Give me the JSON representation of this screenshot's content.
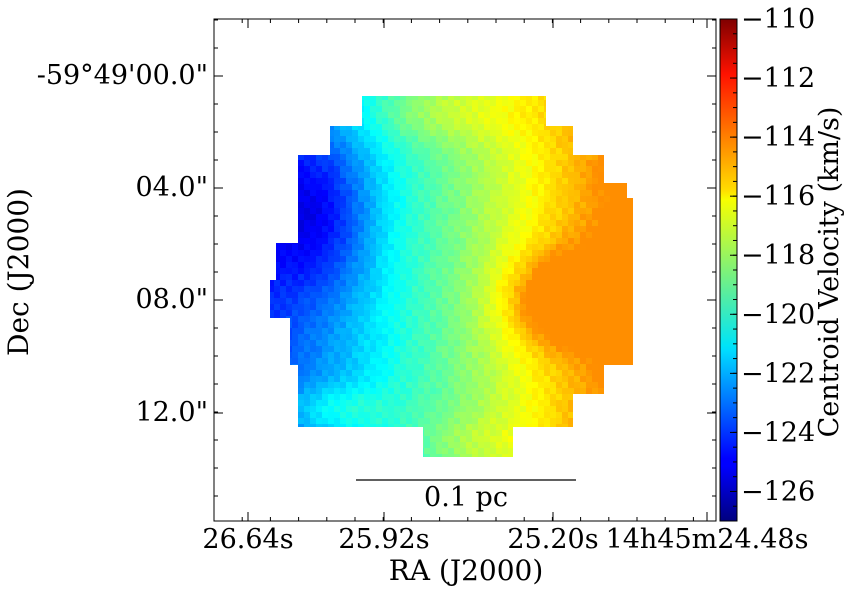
{
  "chart_data": {
    "type": "heatmap",
    "xlabel": "RA (J2000)",
    "ylabel": "Dec (J2000)",
    "x_tick_labels": [
      "26.64s",
      "25.92s",
      "25.20s",
      "14h45m24.48s"
    ],
    "y_tick_labels": [
      "-59°49'00.0\"",
      "04.0\"",
      "08.0\"",
      "12.0\""
    ],
    "x_range_s": [
      26.64,
      24.48
    ],
    "y_range_arcsec_offset": [
      -2.0,
      16.0
    ],
    "colorbar": {
      "label": "Centroid Velocity (km/s)",
      "range": [
        -127,
        -110
      ],
      "tick_labels": [
        "-110",
        "-112",
        "-114",
        "-116",
        "-118",
        "-120",
        "-122",
        "-124",
        "-126"
      ],
      "ticks": [
        -110,
        -112,
        -114,
        -116,
        -118,
        -120,
        -122,
        -124,
        -126
      ],
      "colormap": "jet"
    },
    "scale_bar": {
      "label": "0.1 pc"
    },
    "map": {
      "description_values": "centroid velocity field, approx −125 km/s in the east (left) rising to approx −115 km/s in the west (right)",
      "velocity_min": -125.5,
      "velocity_max": -114.5
    }
  },
  "colors": {
    "background": "#ffffff",
    "axes": "#000000"
  }
}
